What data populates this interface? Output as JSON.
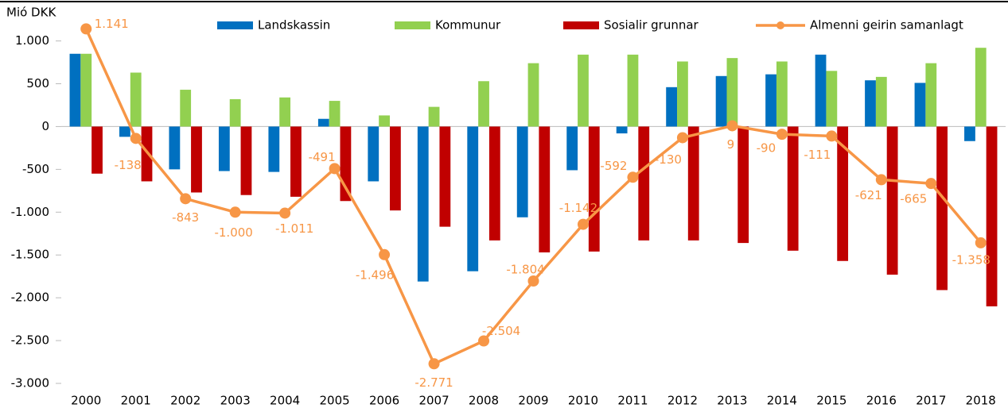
{
  "chart_data": {
    "type": "bar_line",
    "y_axis_label": "Mió DKK",
    "categories": [
      "2000",
      "2001",
      "2002",
      "2003",
      "2004",
      "2005",
      "2006",
      "2007",
      "2008",
      "2009",
      "2010",
      "2011",
      "2012",
      "2013",
      "2014",
      "2015",
      "2016",
      "2017",
      "2018"
    ],
    "series": [
      {
        "name": "Landskassin",
        "type": "bar",
        "color": "#0070c0",
        "values": [
          850,
          -120,
          -500,
          -520,
          -530,
          90,
          -640,
          -1810,
          -1690,
          -1060,
          -510,
          -80,
          460,
          590,
          610,
          840,
          540,
          510,
          -170
        ]
      },
      {
        "name": "Kommunur",
        "type": "bar",
        "color": "#92d050",
        "values": [
          850,
          630,
          430,
          320,
          340,
          300,
          130,
          230,
          530,
          740,
          840,
          840,
          760,
          800,
          760,
          650,
          580,
          740,
          920
        ]
      },
      {
        "name": "Sosialir grunnar",
        "type": "bar",
        "color": "#c00000",
        "values": [
          -550,
          -640,
          -770,
          -800,
          -820,
          -870,
          -980,
          -1170,
          -1330,
          -1470,
          -1460,
          -1330,
          -1330,
          -1360,
          -1450,
          -1570,
          -1730,
          -1910,
          -2100
        ]
      },
      {
        "name": "Almenni geirin samanlagt",
        "type": "line",
        "color": "#f79646",
        "values": [
          1141,
          -138,
          -843,
          -1000,
          -1011,
          -491,
          -1496,
          -2771,
          -2504,
          -1804,
          -1142,
          -592,
          -130,
          9,
          -90,
          -111,
          -621,
          -665,
          -1358
        ],
        "value_labels": [
          "1.141",
          "-138",
          "-843",
          "-1.000",
          "-1.011",
          "-491",
          "-1.496",
          "-2.771",
          "-2.504",
          "-1.804",
          "-1.142",
          "-592",
          "-130",
          "9",
          "-90",
          "-111",
          "-621",
          "-665",
          "-1.358"
        ]
      }
    ],
    "ylim": [
      -3000,
      1200
    ],
    "yticks": [
      {
        "value": 1000,
        "label": "1.000"
      },
      500,
      0,
      -500,
      {
        "value": -1000,
        "label": "-1.000"
      },
      {
        "value": -1500,
        "label": "-1.500"
      },
      {
        "value": -2000,
        "label": "-2.000"
      },
      {
        "value": -2500,
        "label": "-2.500"
      },
      {
        "value": -3000,
        "label": "-3.000"
      }
    ]
  }
}
